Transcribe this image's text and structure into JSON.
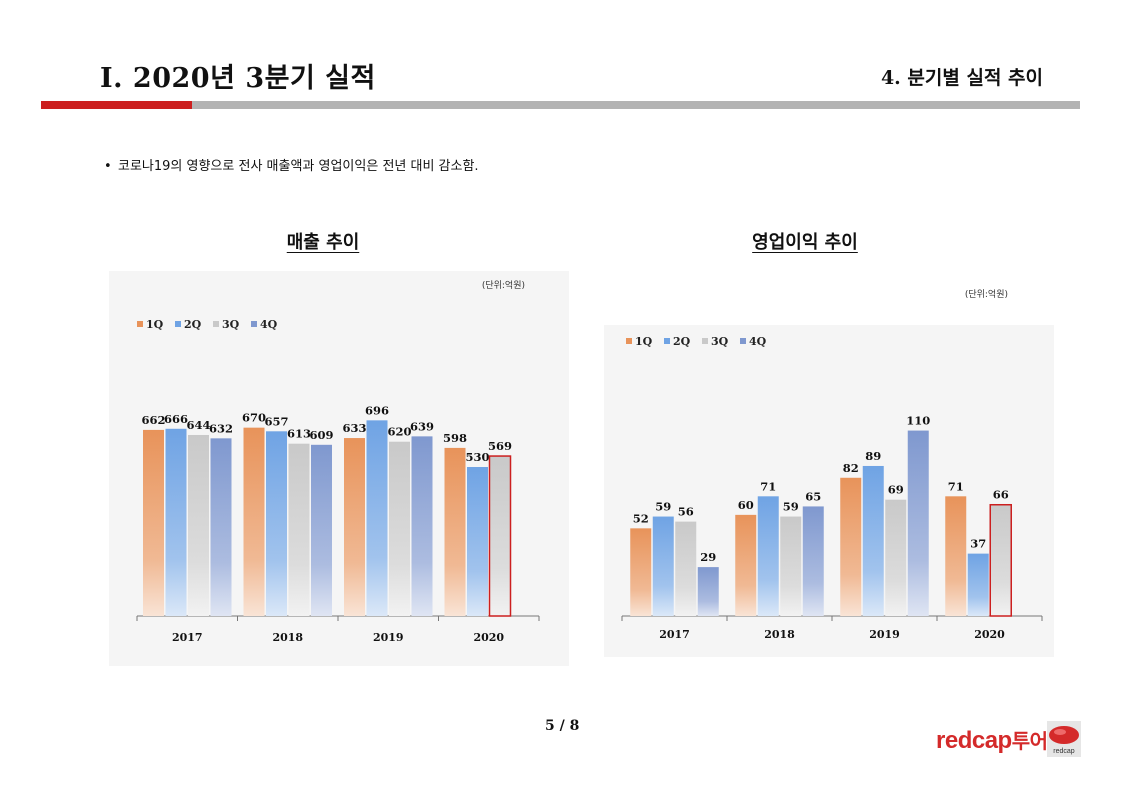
{
  "header": {
    "title": "Ⅰ. 2020년 3분기 실적",
    "section": "4. 분기별 실적 추이",
    "accent_color": "#cc1f1f",
    "rule_color": "#b3b3b3"
  },
  "bullet": {
    "symbol": "•",
    "text": "코로나19의 영향으로 전사 매출액과 영업이익은 전년 대비 감소함."
  },
  "footer": {
    "page": "5 / 8",
    "logo_text": "redcap",
    "logo_suffix": "투어",
    "logo_mark_text": "redcap"
  },
  "chart_data": [
    {
      "type": "bar",
      "title": "매출 추이",
      "unit": "(단위:억원)",
      "categories": [
        "2017",
        "2018",
        "2019",
        "2020"
      ],
      "series": [
        {
          "name": "1Q",
          "color": "#e8935a",
          "values": [
            662,
            670,
            633,
            598
          ]
        },
        {
          "name": "2Q",
          "color": "#6fa3e4",
          "values": [
            666,
            657,
            696,
            530
          ]
        },
        {
          "name": "3Q",
          "color": "#c9c9c9",
          "values": [
            644,
            613,
            620,
            569
          ]
        },
        {
          "name": "4Q",
          "color": "#7f98cf",
          "values": [
            632,
            609,
            639,
            null
          ]
        }
      ],
      "highlight": {
        "series": "3Q",
        "category": "2020",
        "border_color": "#cc1f1f"
      },
      "ylim": [
        0,
        900
      ],
      "legend": "top-left",
      "grid": false
    },
    {
      "type": "bar",
      "title": "영업이익 추이",
      "unit": "(단위:억원)",
      "categories": [
        "2017",
        "2018",
        "2019",
        "2020"
      ],
      "series": [
        {
          "name": "1Q",
          "color": "#e8935a",
          "values": [
            52,
            60,
            82,
            71
          ]
        },
        {
          "name": "2Q",
          "color": "#6fa3e4",
          "values": [
            59,
            71,
            89,
            37
          ]
        },
        {
          "name": "3Q",
          "color": "#c9c9c9",
          "values": [
            56,
            59,
            69,
            66
          ]
        },
        {
          "name": "4Q",
          "color": "#7f98cf",
          "values": [
            29,
            65,
            110,
            null
          ]
        }
      ],
      "highlight": {
        "series": "3Q",
        "category": "2020",
        "border_color": "#cc1f1f"
      },
      "ylim": [
        0,
        140
      ],
      "legend": "top-left",
      "grid": false
    }
  ]
}
